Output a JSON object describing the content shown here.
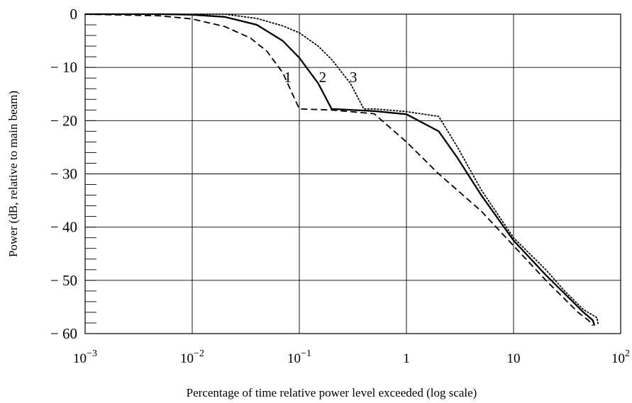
{
  "chart_data": {
    "type": "line",
    "xlabel": "Percentage of time relative power level exceeded (log scale)",
    "ylabel": "Power (dB, relative to main beam)",
    "x_scale": "log",
    "xlim": [
      0.001,
      100
    ],
    "ylim": [
      -60,
      0
    ],
    "grid": true,
    "x_ticks": [
      {
        "value": 0.001,
        "base": "10",
        "exp": "−3"
      },
      {
        "value": 0.01,
        "base": "10",
        "exp": "−2"
      },
      {
        "value": 0.1,
        "base": "10",
        "exp": "−1"
      },
      {
        "value": 1,
        "base": "1",
        "exp": ""
      },
      {
        "value": 10,
        "base": "10",
        "exp": ""
      },
      {
        "value": 100,
        "base": "10",
        "exp": "2"
      }
    ],
    "y_ticks": [
      {
        "value": 0,
        "label": "0"
      },
      {
        "value": -10,
        "label": "− 10"
      },
      {
        "value": -20,
        "label": "− 20"
      },
      {
        "value": -30,
        "label": "− 30"
      },
      {
        "value": -40,
        "label": "− 40"
      },
      {
        "value": -50,
        "label": "− 50"
      },
      {
        "value": -60,
        "label": "− 60"
      }
    ],
    "series": [
      {
        "name": "1",
        "style": "dashed",
        "label_at": {
          "x": 0.078,
          "y": -12.8
        },
        "points": [
          [
            0.001,
            0
          ],
          [
            0.005,
            -0.3
          ],
          [
            0.01,
            -0.9
          ],
          [
            0.02,
            -2.3
          ],
          [
            0.035,
            -4.5
          ],
          [
            0.05,
            -7
          ],
          [
            0.07,
            -11
          ],
          [
            0.1,
            -17.8
          ],
          [
            0.2,
            -18
          ],
          [
            0.5,
            -18.7
          ],
          [
            1,
            -24
          ],
          [
            2,
            -30
          ],
          [
            5,
            -37
          ],
          [
            10,
            -43.5
          ],
          [
            20,
            -50
          ],
          [
            40,
            -56
          ],
          [
            50,
            -57.5
          ],
          [
            55,
            -58.5
          ]
        ]
      },
      {
        "name": "2",
        "style": "solid",
        "label_at": {
          "x": 0.165,
          "y": -12.8
        },
        "points": [
          [
            0.001,
            0
          ],
          [
            0.005,
            0
          ],
          [
            0.01,
            -0.1
          ],
          [
            0.02,
            -0.5
          ],
          [
            0.04,
            -2
          ],
          [
            0.07,
            -5
          ],
          [
            0.1,
            -8.2
          ],
          [
            0.15,
            -13
          ],
          [
            0.2,
            -17.8
          ],
          [
            0.5,
            -18.2
          ],
          [
            1,
            -18.8
          ],
          [
            2,
            -22
          ],
          [
            3,
            -27
          ],
          [
            5,
            -34
          ],
          [
            10,
            -42.5
          ],
          [
            20,
            -49
          ],
          [
            30,
            -52.5
          ],
          [
            45,
            -56
          ],
          [
            55,
            -57.5
          ],
          [
            57,
            -58.5
          ]
        ]
      },
      {
        "name": "3",
        "style": "dotted",
        "label_at": {
          "x": 0.32,
          "y": -12.8
        },
        "points": [
          [
            0.001,
            0
          ],
          [
            0.01,
            0
          ],
          [
            0.02,
            0
          ],
          [
            0.04,
            -0.8
          ],
          [
            0.07,
            -2.2
          ],
          [
            0.1,
            -3.5
          ],
          [
            0.15,
            -6
          ],
          [
            0.2,
            -8.5
          ],
          [
            0.3,
            -13
          ],
          [
            0.4,
            -17.8
          ],
          [
            0.5,
            -17.8
          ],
          [
            1,
            -18.3
          ],
          [
            2,
            -19.2
          ],
          [
            3,
            -25
          ],
          [
            5,
            -33
          ],
          [
            10,
            -42
          ],
          [
            20,
            -48
          ],
          [
            30,
            -52
          ],
          [
            45,
            -55.5
          ],
          [
            60,
            -57
          ],
          [
            62,
            -58.5
          ]
        ]
      }
    ]
  }
}
